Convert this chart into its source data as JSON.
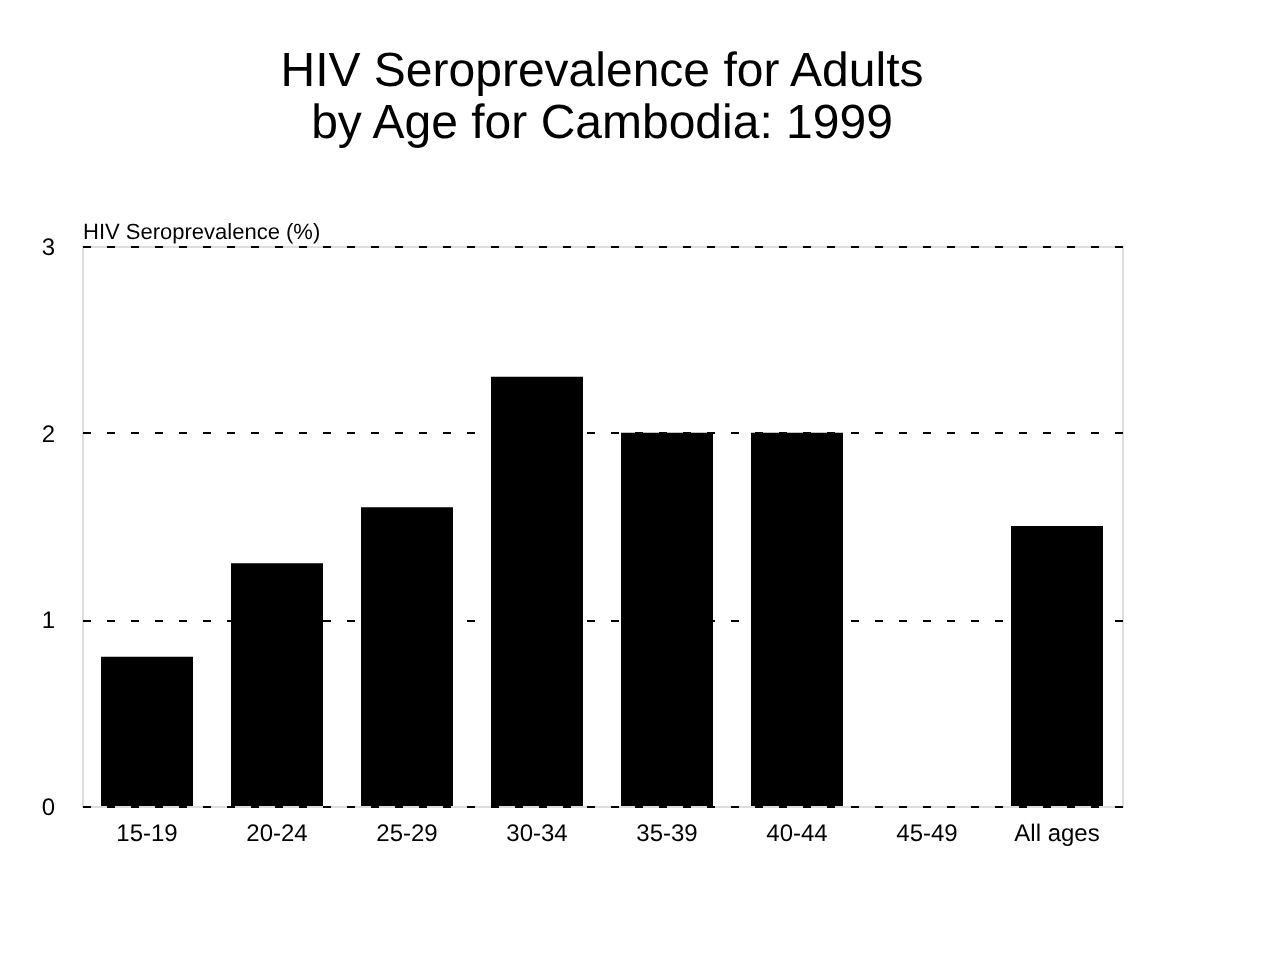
{
  "chart_data": {
    "type": "bar",
    "title": [
      "HIV Seroprevalence for Adults",
      "by Age for Cambodia:  1999"
    ],
    "ylabel": "HIV Seroprevalence (%)",
    "categories": [
      "15-19",
      "20-24",
      "25-29",
      "30-34",
      "35-39",
      "40-44",
      "45-49",
      "All ages"
    ],
    "values": [
      0.8,
      1.3,
      1.6,
      2.3,
      2.0,
      2.0,
      0.0,
      1.5
    ],
    "color": "#000000",
    "ylim": [
      0,
      3
    ],
    "yticks": [
      0,
      1,
      2,
      3
    ],
    "grid": "y"
  }
}
